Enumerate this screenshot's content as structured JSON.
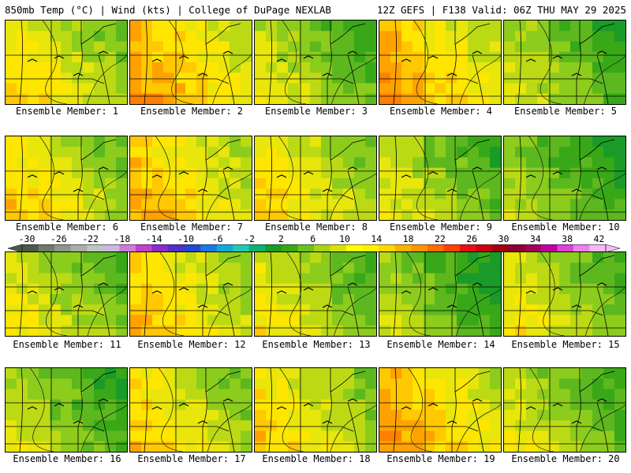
{
  "header": {
    "left_title": "850mb Temp (°C) | Wind (kts) | College of DuPage NEXLAB",
    "right_title": "12Z GEFS | F138 Valid: 06Z THU MAY 29 2025"
  },
  "colorbar": {
    "tick_labels": [
      "-30",
      "-26",
      "-22",
      "-18",
      "-14",
      "-10",
      "-6",
      "-2",
      "2",
      "6",
      "10",
      "14",
      "18",
      "22",
      "26",
      "30",
      "34",
      "38",
      "42"
    ],
    "colors": [
      "#4a5a4a",
      "#6e7a6e",
      "#8c968c",
      "#a8aea8",
      "#c0c6c0",
      "#c9b8e0",
      "#d07ae0",
      "#c040d0",
      "#8a2ad0",
      "#5030c8",
      "#2844d8",
      "#1c78e8",
      "#14a8d8",
      "#20c8b8",
      "#10b070",
      "#1a9a28",
      "#38a818",
      "#6cc020",
      "#a8d418",
      "#d8e010",
      "#ffff00",
      "#fff000",
      "#ffd800",
      "#ffb000",
      "#ff9400",
      "#ff6c00",
      "#ff4000",
      "#e81010",
      "#c80010",
      "#a00010",
      "#880030",
      "#a00060",
      "#c000a0",
      "#e040e0",
      "#f080f0",
      "#f8b8f8"
    ]
  },
  "members": [
    {
      "caption": "Ensemble Member: 1",
      "base": 14
    },
    {
      "caption": "Ensemble Member: 2",
      "base": 17
    },
    {
      "caption": "Ensemble Member: 3",
      "base": 11
    },
    {
      "caption": "Ensemble Member: 4",
      "base": 17
    },
    {
      "caption": "Ensemble Member: 5",
      "base": 10
    },
    {
      "caption": "Ensemble Member: 6",
      "base": 14
    },
    {
      "caption": "Ensemble Member: 7",
      "base": 16
    },
    {
      "caption": "Ensemble Member: 8",
      "base": 14
    },
    {
      "caption": "Ensemble Member: 9",
      "base": 11
    },
    {
      "caption": "Ensemble Member: 10",
      "base": 9
    },
    {
      "caption": "Ensemble Member: 11",
      "base": 12
    },
    {
      "caption": "Ensemble Member: 12",
      "base": 15
    },
    {
      "caption": "Ensemble Member: 13",
      "base": 12
    },
    {
      "caption": "Ensemble Member: 14",
      "base": 9
    },
    {
      "caption": "Ensemble Member: 15",
      "base": 12
    },
    {
      "caption": "Ensemble Member: 16",
      "base": 10
    },
    {
      "caption": "Ensemble Member: 17",
      "base": 14
    },
    {
      "caption": "Ensemble Member: 18",
      "base": 14
    },
    {
      "caption": "Ensemble Member: 19",
      "base": 17
    },
    {
      "caption": "Ensemble Member: 20",
      "base": 11
    }
  ]
}
